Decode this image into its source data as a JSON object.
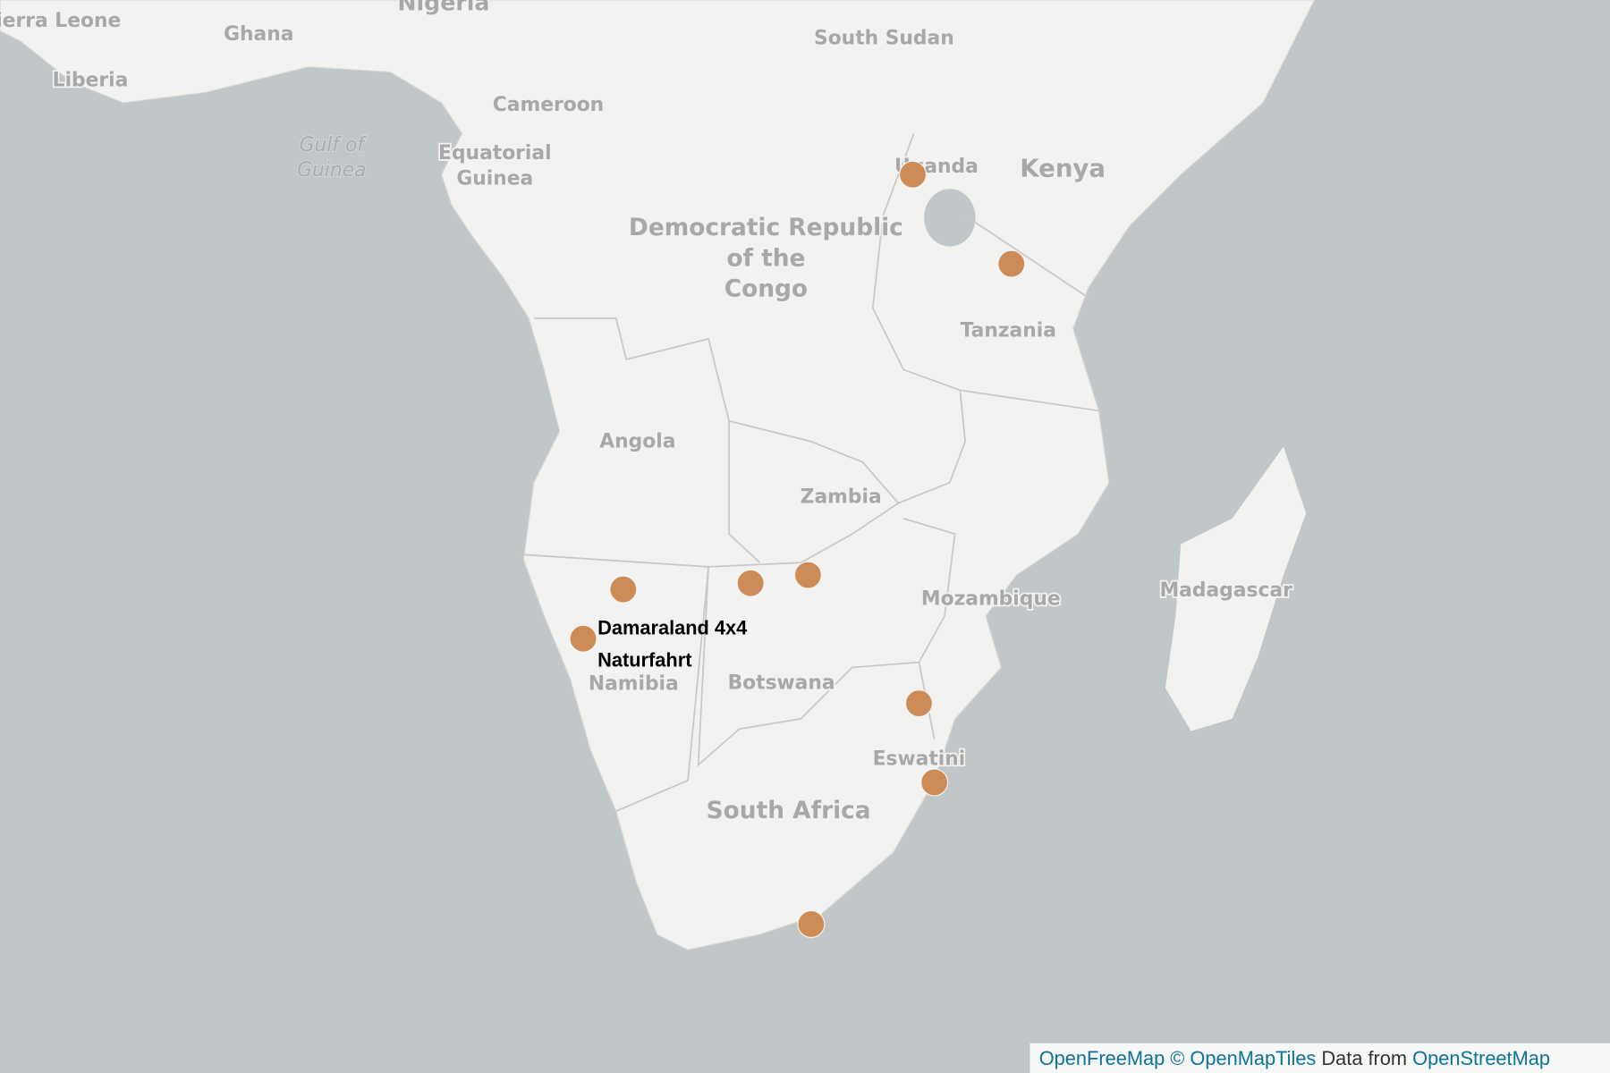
{
  "map": {
    "countries": [
      "Sierra Leone",
      "Ghana",
      "Liberia",
      "Nigeria",
      "South Sudan",
      "Cameroon",
      "Equatorial Guinea",
      "Uganda",
      "Kenya",
      "Democratic Republic of the Congo",
      "Tanzania",
      "Angola",
      "Zambia",
      "Mozambique",
      "Madagascar",
      "Namibia",
      "Botswana",
      "Eswatini",
      "South Africa"
    ],
    "water": [
      "Gulf of Guinea"
    ],
    "marker_label": "Damaraland 4x4 Naturfahrt",
    "attribution": [
      "OpenFreeMap",
      "© OpenMapTiles",
      "Data from",
      "OpenStreetMap"
    ]
  }
}
